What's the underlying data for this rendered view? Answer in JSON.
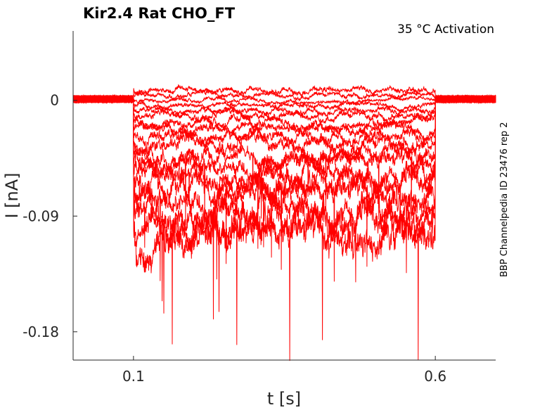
{
  "chart_data": {
    "type": "line",
    "title": "Kir2.4  Rat  CHO_FT",
    "subtitle": "35 °C  Activation",
    "side_label": "BBP Channelpedia ID 23476 rep 2",
    "xlabel": "t [s]",
    "ylabel": "I [nA]",
    "xlim": [
      0.0,
      0.7
    ],
    "ylim": [
      -0.202,
      0.054
    ],
    "x_ticks": [
      0.1,
      0.6
    ],
    "x_tick_labels": [
      "0.1",
      "0.6"
    ],
    "y_ticks": [
      0,
      -0.09,
      -0.18
    ],
    "y_tick_labels": [
      "0",
      "-0.09",
      "-0.18"
    ],
    "grid": false,
    "line_color": "#ff0000",
    "pulse": {
      "start": 0.1,
      "end": 0.6
    },
    "series_levels": [
      0.008,
      0.004,
      0.0,
      -0.004,
      -0.008,
      -0.012,
      -0.017,
      -0.022,
      -0.028,
      -0.034,
      -0.041,
      -0.048,
      -0.056,
      -0.064,
      -0.073,
      -0.083,
      -0.093,
      -0.105
    ]
  }
}
